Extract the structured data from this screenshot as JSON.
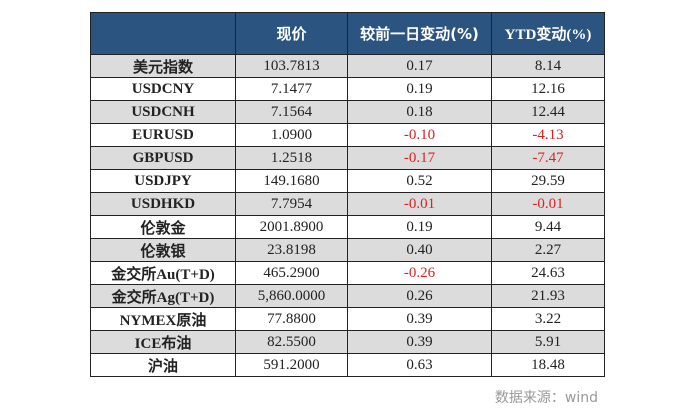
{
  "header": {
    "col0": "",
    "col1": "现价",
    "col2": "较前一日变动(%)",
    "col3": "YTD变动(%)"
  },
  "rows": [
    {
      "name": "美元指数",
      "price": "103.7813",
      "day": "0.17",
      "ytd": "8.14"
    },
    {
      "name": "USDCNY",
      "price": "7.1477",
      "day": "0.19",
      "ytd": "12.16"
    },
    {
      "name": "USDCNH",
      "price": "7.1564",
      "day": "0.18",
      "ytd": "12.44"
    },
    {
      "name": "EURUSD",
      "price": "1.0900",
      "day": "-0.10",
      "ytd": "-4.13"
    },
    {
      "name": "GBPUSD",
      "price": "1.2518",
      "day": "-0.17",
      "ytd": "-7.47"
    },
    {
      "name": "USDJPY",
      "price": "149.1680",
      "day": "0.52",
      "ytd": "29.59"
    },
    {
      "name": "USDHKD",
      "price": "7.7954",
      "day": "-0.01",
      "ytd": "-0.01"
    },
    {
      "name": "伦敦金",
      "price": "2001.8900",
      "day": "0.19",
      "ytd": "9.44"
    },
    {
      "name": "伦敦银",
      "price": "23.8198",
      "day": "0.40",
      "ytd": "2.27"
    },
    {
      "name": "金交所Au(T+D)",
      "price": "465.2900",
      "day": "-0.26",
      "ytd": "24.63"
    },
    {
      "name": "金交所Ag(T+D)",
      "price": "5,860.0000",
      "day": "0.26",
      "ytd": "21.93"
    },
    {
      "name": "NYMEX原油",
      "price": "77.8800",
      "day": "0.39",
      "ytd": "3.22"
    },
    {
      "name": "ICE布油",
      "price": "82.5500",
      "day": "0.39",
      "ytd": "5.91"
    },
    {
      "name": "沪油",
      "price": "591.2000",
      "day": "0.63",
      "ytd": "18.48"
    }
  ],
  "source": "数据来源：wind",
  "colors": {
    "header": "#2c5480",
    "negative": "#e02020",
    "stripe": "#dcdcdc"
  }
}
